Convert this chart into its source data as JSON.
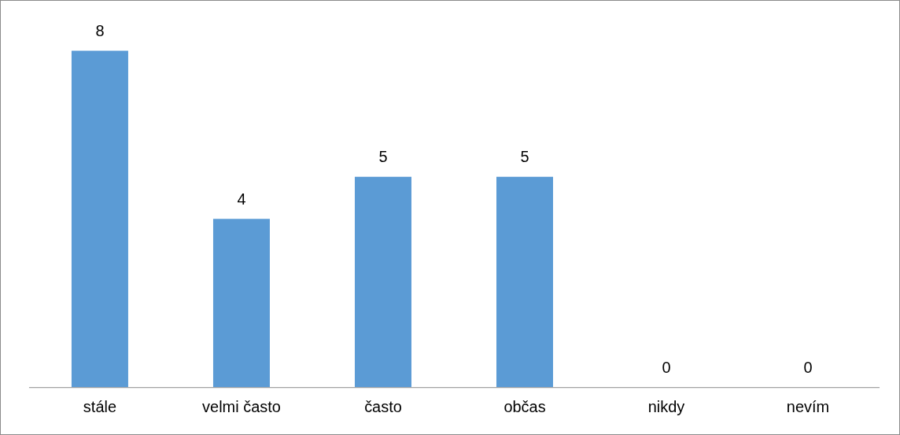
{
  "chart_data": {
    "type": "bar",
    "categories": [
      "stále",
      "velmi často",
      "často",
      "občas",
      "nikdy",
      "nevím"
    ],
    "values": [
      8,
      4,
      5,
      5,
      0,
      0
    ],
    "color": "#5b9bd5",
    "data_labels": true,
    "grid": false,
    "legend": false
  }
}
